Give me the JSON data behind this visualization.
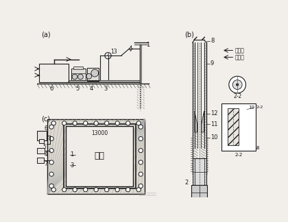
{
  "bg_color": "#f2efea",
  "line_color": "#1a1a1a",
  "text_gaoyashui": "高压水",
  "text_dixiashui": "地下水",
  "text_jikeng": "基坑",
  "text_13000": "13000",
  "text_22": "2-2",
  "watermark": "微信公众号易先排水"
}
